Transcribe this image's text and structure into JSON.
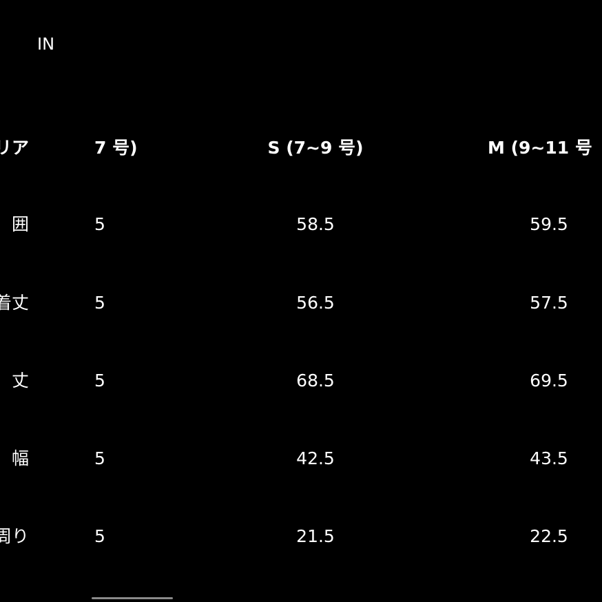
{
  "unit": "IN",
  "table": {
    "header": [
      "リア",
      "7 号)",
      "S (7~9 号)",
      "M (9~11 号"
    ],
    "rows": [
      [
        "囲",
        "5",
        "58.5",
        "59.5"
      ],
      [
        "着丈",
        "5",
        "56.5",
        "57.5"
      ],
      [
        "丈",
        "5",
        "68.5",
        "69.5"
      ],
      [
        "幅",
        "5",
        "42.5",
        "43.5"
      ],
      [
        "周り",
        "5",
        "21.5",
        "22.5"
      ]
    ]
  }
}
